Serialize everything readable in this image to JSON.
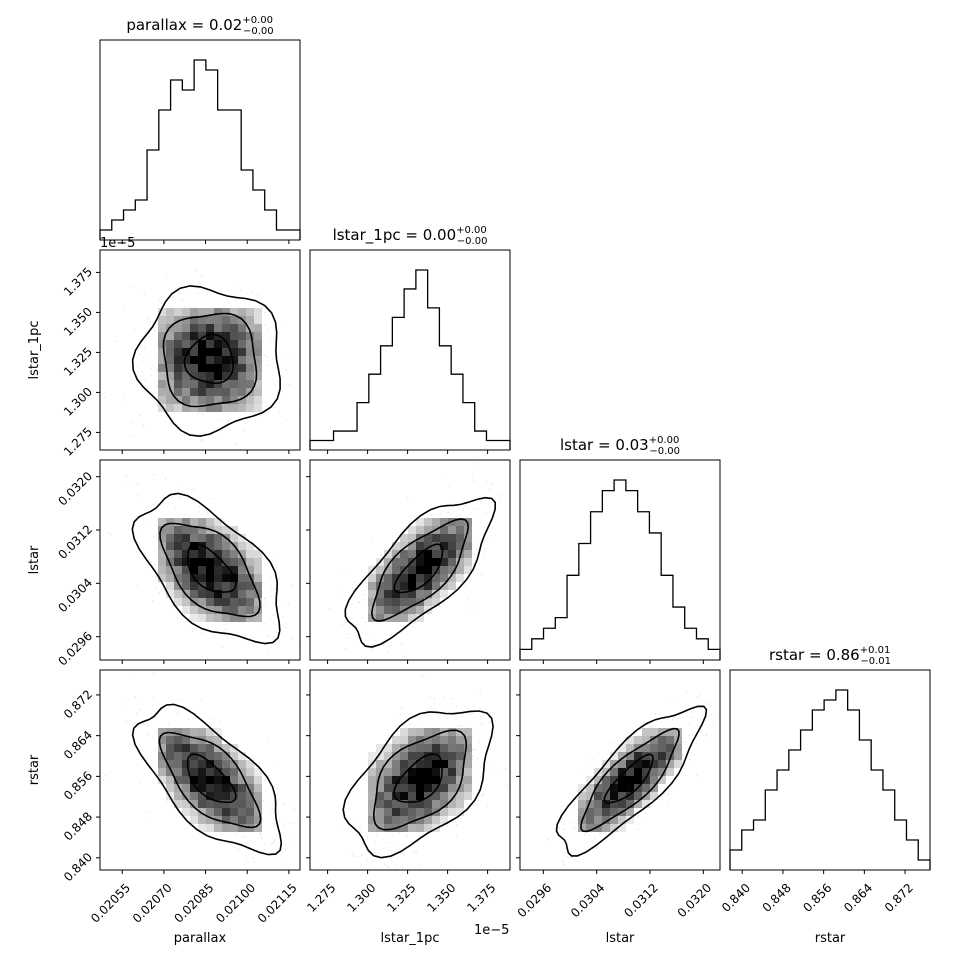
{
  "chart_data": {
    "type": "corner",
    "parameters": [
      "parallax",
      "lstar_1pc",
      "lstar",
      "rstar"
    ],
    "axis_labels": [
      "parallax",
      "lstar_1pc",
      "lstar",
      "rstar"
    ],
    "offset_labels": {
      "lstar_1pc": "1e−5"
    },
    "titles": [
      {
        "name": "parallax",
        "value": "0.02",
        "plus": "+0.00",
        "minus": "−0.00"
      },
      {
        "name": "lstar_1pc",
        "value": "0.00",
        "plus": "+0.00",
        "minus": "−0.00"
      },
      {
        "name": "lstar",
        "value": "0.03",
        "plus": "+0.00",
        "minus": "−0.00"
      },
      {
        "name": "rstar",
        "value": "0.86",
        "plus": "+0.01",
        "minus": "−0.01"
      }
    ],
    "ranges": [
      [
        0.02047,
        0.02119
      ],
      [
        1.264,
        1.389
      ],
      [
        0.02925,
        0.03225
      ],
      [
        0.8376,
        0.8769
      ]
    ],
    "ticks": [
      {
        "values": [
          0.02055,
          0.0207,
          0.02085,
          0.021,
          0.02115
        ],
        "labels": [
          "0.02055",
          "0.02070",
          "0.02085",
          "0.02100",
          "0.02115"
        ]
      },
      {
        "values": [
          1.275,
          1.3,
          1.325,
          1.35,
          1.375
        ],
        "labels": [
          "1.275",
          "1.300",
          "1.325",
          "1.350",
          "1.375"
        ]
      },
      {
        "values": [
          0.0296,
          0.0304,
          0.0312,
          0.032
        ],
        "labels": [
          "0.0296",
          "0.0304",
          "0.0312",
          "0.0320"
        ]
      },
      {
        "values": [
          0.84,
          0.848,
          0.856,
          0.864,
          0.872
        ],
        "labels": [
          "0.840",
          "0.848",
          "0.856",
          "0.864",
          "0.872"
        ]
      }
    ],
    "histograms": [
      [
        1,
        2,
        3,
        4,
        9,
        13,
        16,
        15,
        18,
        17,
        13,
        13,
        7,
        5,
        3,
        1,
        1
      ],
      [
        1,
        1,
        2,
        2,
        5,
        8,
        11,
        14,
        17,
        19,
        15,
        11,
        8,
        5,
        2,
        1,
        1
      ],
      [
        1,
        2,
        3,
        4,
        8,
        11,
        14,
        16,
        17,
        16,
        14,
        12,
        8,
        5,
        3,
        2,
        1
      ],
      [
        2,
        4,
        5,
        8,
        10,
        12,
        14,
        16,
        17,
        18,
        16,
        13,
        10,
        8,
        5,
        3,
        1
      ]
    ],
    "correlations": [
      {
        "x": "lstar_1pc",
        "y": "parallax",
        "rho": 0.0
      },
      {
        "x": "lstar",
        "y": "parallax",
        "rho": -0.55
      },
      {
        "x": "lstar",
        "y": "lstar_1pc",
        "rho": 0.72
      },
      {
        "x": "rstar",
        "y": "parallax",
        "rho": -0.65
      },
      {
        "x": "rstar",
        "y": "lstar_1pc",
        "rho": 0.5
      },
      {
        "x": "rstar",
        "y": "lstar",
        "rho": 0.82
      }
    ],
    "grid": false
  }
}
